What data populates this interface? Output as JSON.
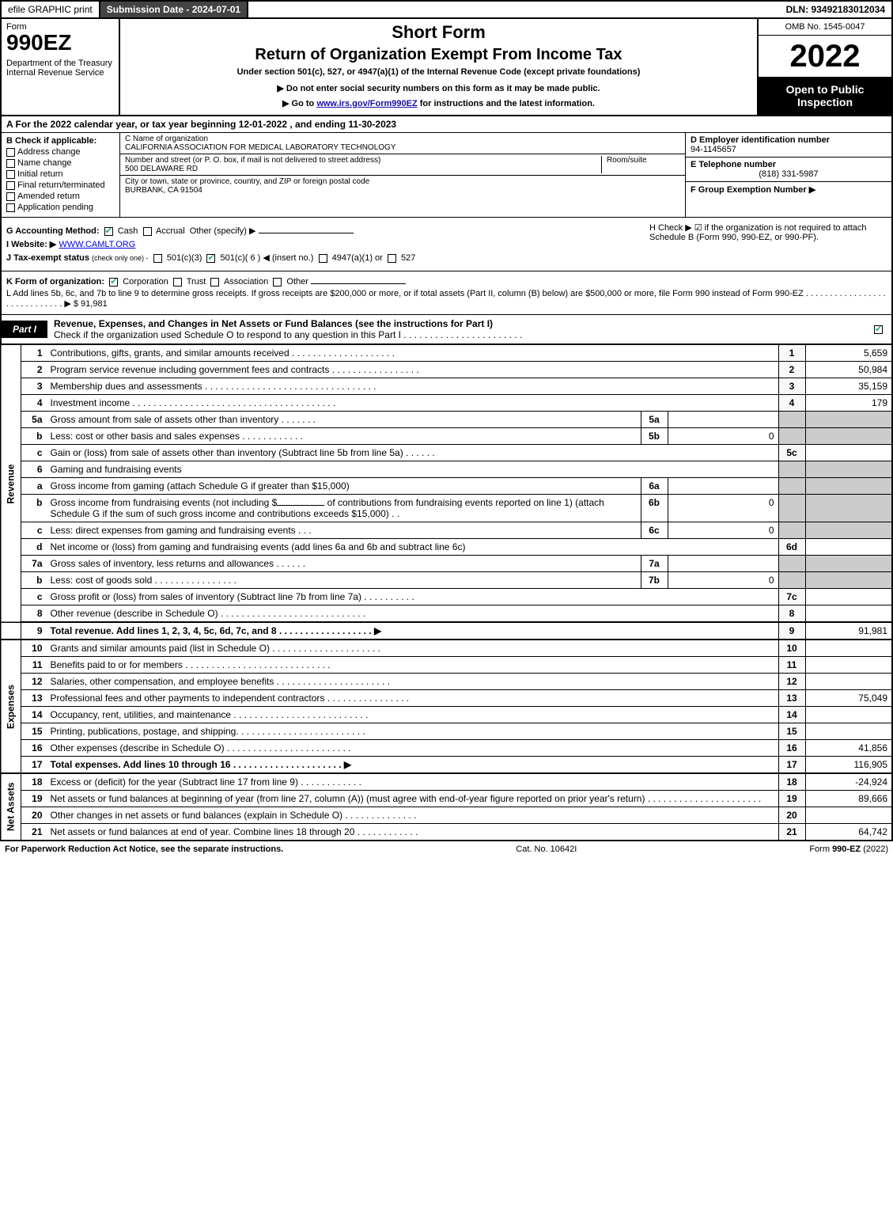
{
  "topbar": {
    "efile": "efile GRAPHIC print",
    "submission_label": "Submission Date - 2024-07-01",
    "dln": "DLN: 93492183012034"
  },
  "header": {
    "form_word": "Form",
    "form_number": "990EZ",
    "department": "Department of the Treasury\nInternal Revenue Service",
    "short_form": "Short Form",
    "return_of": "Return of Organization Exempt From Income Tax",
    "under_section": "Under section 501(c), 527, or 4947(a)(1) of the Internal Revenue Code (except private foundations)",
    "do_not_enter": "▶ Do not enter social security numbers on this form as it may be made public.",
    "goto_pre": "▶ Go to ",
    "goto_link": "www.irs.gov/Form990EZ",
    "goto_post": " for instructions and the latest information.",
    "omb": "OMB No. 1545-0047",
    "tax_year": "2022",
    "open_public": "Open to Public Inspection"
  },
  "row_a": "A  For the 2022 calendar year, or tax year beginning 12-01-2022 , and ending 11-30-2023",
  "section_b": {
    "label": "B  Check if applicable:",
    "items": [
      {
        "label": "Address change",
        "checked": false
      },
      {
        "label": "Name change",
        "checked": false
      },
      {
        "label": "Initial return",
        "checked": false
      },
      {
        "label": "Final return/terminated",
        "checked": false
      },
      {
        "label": "Amended return",
        "checked": false
      },
      {
        "label": "Application pending",
        "checked": false
      }
    ]
  },
  "section_c": {
    "name_label": "C Name of organization",
    "org_name": "CALIFORNIA ASSOCIATION FOR MEDICAL LABORATORY TECHNOLOGY",
    "addr_label": "Number and street (or P. O. box, if mail is not delivered to street address)",
    "room_label": "Room/suite",
    "street": "500 DELAWARE RD",
    "city_label": "City or town, state or province, country, and ZIP or foreign postal code",
    "city": "BURBANK, CA  91504"
  },
  "section_def": {
    "d_label": "D Employer identification number",
    "d_value": "94-1145657",
    "e_label": "E Telephone number",
    "e_value": "(818) 331-5987",
    "f_label": "F Group Exemption Number  ▶"
  },
  "section_g": {
    "label": "G Accounting Method:",
    "cash": "Cash",
    "accrual": "Accrual",
    "other": "Other (specify) ▶"
  },
  "section_h": {
    "text": "H  Check ▶ ☑ if the organization is not required to attach Schedule B (Form 990, 990-EZ, or 990-PF)."
  },
  "section_i": {
    "label": "I Website: ▶",
    "value": "WWW.CAMLT.ORG"
  },
  "section_j": {
    "label": "J Tax-exempt status",
    "sub": "(check only one) -",
    "opt1": "501(c)(3)",
    "opt2": "501(c)( 6 ) ◀ (insert no.)",
    "opt3": "4947(a)(1) or",
    "opt4": "527"
  },
  "section_k": {
    "label": "K Form of organization:",
    "corp": "Corporation",
    "trust": "Trust",
    "assoc": "Association",
    "other": "Other"
  },
  "section_l": {
    "text": "L Add lines 5b, 6c, and 7b to line 9 to determine gross receipts. If gross receipts are $200,000 or more, or if total assets (Part II, column (B) below) are $500,000 or more, file Form 990 instead of Form 990-EZ . . . . . . . . . . . . . . . . . . . . . . . . . . . . .  ▶ $ 91,981"
  },
  "part1": {
    "label": "Part I",
    "title": "Revenue, Expenses, and Changes in Net Assets or Fund Balances (see the instructions for Part I)",
    "subtitle": "Check if the organization used Schedule O to respond to any question in this Part I . . . . . . . . . . . . . . . . . . . . . . ."
  },
  "side_labels": {
    "revenue": "Revenue",
    "expenses": "Expenses",
    "netassets": "Net Assets"
  },
  "lines": {
    "l1": {
      "desc": "Contributions, gifts, grants, and similar amounts received . . . . . . . . . . . . . . . . . . . .",
      "num": "1",
      "amt": "5,659"
    },
    "l2": {
      "desc": "Program service revenue including government fees and contracts . . . . . . . . . . . . . . . . .",
      "num": "2",
      "amt": "50,984"
    },
    "l3": {
      "desc": "Membership dues and assessments . . . . . . . . . . . . . . . . . . . . . . . . . . . . . . . . .",
      "num": "3",
      "amt": "35,159"
    },
    "l4": {
      "desc": "Investment income . . . . . . . . . . . . . . . . . . . . . . . . . . . . . . . . . . . . . . .",
      "num": "4",
      "amt": "179"
    },
    "l5a": {
      "desc": "Gross amount from sale of assets other than inventory . . . . . . .",
      "sub": "5a",
      "subval": ""
    },
    "l5b": {
      "desc": "Less: cost or other basis and sales expenses . . . . . . . . . . . .",
      "sub": "5b",
      "subval": "0"
    },
    "l5c": {
      "desc": "Gain or (loss) from sale of assets other than inventory (Subtract line 5b from line 5a) . . . . . .",
      "num": "5c",
      "amt": ""
    },
    "l6": {
      "desc": "Gaming and fundraising events"
    },
    "l6a": {
      "desc": "Gross income from gaming (attach Schedule G if greater than $15,000)",
      "sub": "6a",
      "subval": ""
    },
    "l6b": {
      "desc_pre": "Gross income from fundraising events (not including $",
      "desc_mid": "of contributions from fundraising events reported on line 1) (attach Schedule G if the sum of such gross income and contributions exceeds $15,000)   . .",
      "sub": "6b",
      "subval": "0"
    },
    "l6c": {
      "desc": "Less: direct expenses from gaming and fundraising events  . . .",
      "sub": "6c",
      "subval": "0"
    },
    "l6d": {
      "desc": "Net income or (loss) from gaming and fundraising events (add lines 6a and 6b and subtract line 6c)",
      "num": "6d",
      "amt": ""
    },
    "l7a": {
      "desc": "Gross sales of inventory, less returns and allowances . . . . . .",
      "sub": "7a",
      "subval": ""
    },
    "l7b": {
      "desc": "Less: cost of goods sold     . . . . . . . . . . . . . . . .",
      "sub": "7b",
      "subval": "0"
    },
    "l7c": {
      "desc": "Gross profit or (loss) from sales of inventory (Subtract line 7b from line 7a) . . . . . . . . . .",
      "num": "7c",
      "amt": ""
    },
    "l8": {
      "desc": "Other revenue (describe in Schedule O) . . . . . . . . . . . . . . . . . . . . . . . . . . . .",
      "num": "8",
      "amt": ""
    },
    "l9": {
      "desc": "Total revenue. Add lines 1, 2, 3, 4, 5c, 6d, 7c, and 8  . . . . . . . . . . . . . . . . . .  ▶",
      "num": "9",
      "amt": "91,981",
      "bold": true
    },
    "l10": {
      "desc": "Grants and similar amounts paid (list in Schedule O) . . . . . . . . . . . . . . . . . . . . .",
      "num": "10",
      "amt": ""
    },
    "l11": {
      "desc": "Benefits paid to or for members    . . . . . . . . . . . . . . . . . . . . . . . . . . . .",
      "num": "11",
      "amt": ""
    },
    "l12": {
      "desc": "Salaries, other compensation, and employee benefits . . . . . . . . . . . . . . . . . . . . . .",
      "num": "12",
      "amt": ""
    },
    "l13": {
      "desc": "Professional fees and other payments to independent contractors . . . . . . . . . . . . . . . .",
      "num": "13",
      "amt": "75,049"
    },
    "l14": {
      "desc": "Occupancy, rent, utilities, and maintenance . . . . . . . . . . . . . . . . . . . . . . . . . .",
      "num": "14",
      "amt": ""
    },
    "l15": {
      "desc": "Printing, publications, postage, and shipping. . . . . . . . . . . . . . . . . . . . . . . . .",
      "num": "15",
      "amt": ""
    },
    "l16": {
      "desc": "Other expenses (describe in Schedule O)    . . . . . . . . . . . . . . . . . . . . . . . .",
      "num": "16",
      "amt": "41,856"
    },
    "l17": {
      "desc": "Total expenses. Add lines 10 through 16     . . . . . . . . . . . . . . . . . . . . .  ▶",
      "num": "17",
      "amt": "116,905",
      "bold": true
    },
    "l18": {
      "desc": "Excess or (deficit) for the year (Subtract line 17 from line 9)      . . . . . . . . . . . .",
      "num": "18",
      "amt": "-24,924"
    },
    "l19": {
      "desc": "Net assets or fund balances at beginning of year (from line 27, column (A)) (must agree with end-of-year figure reported on prior year's return) . . . . . . . . . . . . . . . . . . . . . .",
      "num": "19",
      "amt": "89,666"
    },
    "l20": {
      "desc": "Other changes in net assets or fund balances (explain in Schedule O) . . . . . . . . . . . . . .",
      "num": "20",
      "amt": ""
    },
    "l21": {
      "desc": "Net assets or fund balances at end of year. Combine lines 18 through 20 . . . . . . . . . . . .",
      "num": "21",
      "amt": "64,742"
    }
  },
  "footer": {
    "left": "For Paperwork Reduction Act Notice, see the separate instructions.",
    "center": "Cat. No. 10642I",
    "right": "Form 990-EZ (2022)"
  }
}
